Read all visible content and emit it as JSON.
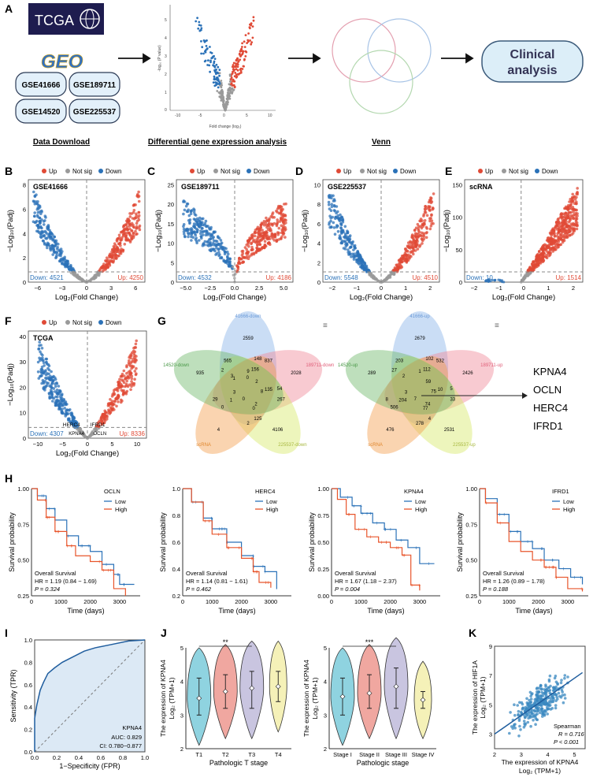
{
  "panel_letters": {
    "A": "A",
    "B": "B",
    "C": "C",
    "D": "D",
    "E": "E",
    "F": "F",
    "G": "G",
    "H": "H",
    "I": "I",
    "J": "J",
    "K": "K"
  },
  "colors": {
    "up": "#e04a36",
    "down": "#2b72b8",
    "ns": "#9a9a9a",
    "low": "#2b72b8",
    "high": "#e8552b"
  },
  "workflow": {
    "tcga_logo": "TCGA",
    "geo_logo": "GEO",
    "datasets": [
      "GSE41666",
      "GSE189711",
      "GSE14520",
      "GSE225537"
    ],
    "clinical": "Clinical analysis",
    "labels": [
      "Data Download",
      "Differential gene expression analysis",
      "Venn"
    ],
    "mini_volcano": {
      "xlabel": "Fold change (log₂)",
      "ylabel": "-log₁₀ (P value)",
      "xticks": [
        "-10",
        "-5",
        "0",
        "5",
        "10"
      ],
      "yticks": [
        "0",
        "1",
        "2",
        "3",
        "4",
        "5"
      ]
    }
  },
  "legend": {
    "up": "Up",
    "ns": "Not sig",
    "down": "Down"
  },
  "common_axes": {
    "ylabel": "−Log₁₀(Padj)",
    "xlabel": "Log₂(Fold Change)"
  },
  "chart_data": [
    {
      "type": "scatter",
      "panel": "B",
      "title": "GSE41666",
      "down_count": "Down: 4521",
      "up_count": "Up: 4250",
      "xlim": [
        -6,
        6
      ],
      "ylim": [
        0,
        8
      ],
      "xticks": [
        "−6",
        "−3",
        "0",
        "3",
        "6"
      ],
      "yticks": [
        "0",
        "2",
        "4",
        "6",
        "8"
      ],
      "shape": {
        "xmax": 5.5,
        "ymax": 7.4,
        "spread": 1.4
      }
    },
    {
      "type": "scatter",
      "panel": "C",
      "title": "GSE189711",
      "down_count": "Down: 4532",
      "up_count": "Up: 4186",
      "xlim": [
        -5,
        5
      ],
      "ylim": [
        0,
        25
      ],
      "xticks": [
        "−5.0",
        "−2.5",
        "0.0",
        "2.5",
        "5.0"
      ],
      "yticks": [
        "0",
        "5",
        "10",
        "15",
        "20",
        "25"
      ],
      "shape": {
        "xmax": 4.4,
        "ymax": 20,
        "spread": 0.5
      }
    },
    {
      "type": "scatter",
      "panel": "D",
      "title": "GSE225537",
      "down_count": "Down: 5548",
      "up_count": "Up: 4510",
      "xlim": [
        -3,
        3
      ],
      "ylim": [
        0,
        10
      ],
      "xticks": [
        "−2",
        "−1",
        "0",
        "1",
        "2"
      ],
      "yticks": [
        "0",
        "2",
        "4",
        "6",
        "8",
        "10"
      ],
      "shape": {
        "xmax": 2.7,
        "ymax": 9.6,
        "spread": 1.4
      }
    },
    {
      "type": "scatter",
      "panel": "E",
      "title": "scRNA",
      "down_count": "Down: 10",
      "up_count": "Up: 1514",
      "xlim": [
        -2.2,
        2.4
      ],
      "ylim": [
        0,
        170
      ],
      "xticks": [
        "−2",
        "−1",
        "0",
        "1",
        "2"
      ],
      "yticks": [
        "0",
        "50",
        "100",
        "150"
      ],
      "shape": {
        "xmax": 2.2,
        "ymax": 160,
        "spread": 1.0
      }
    },
    {
      "type": "scatter",
      "panel": "F",
      "title": "TCGA",
      "down_count": "Down: 4307",
      "up_count": "Up: 8336",
      "xlim": [
        -12,
        12
      ],
      "ylim": [
        0,
        45
      ],
      "xticks": [
        "−10",
        "−5",
        "0",
        "5",
        "10"
      ],
      "yticks": [
        "0",
        "10",
        "20",
        "30",
        "40"
      ],
      "shape": {
        "xmax": 10,
        "ymax": 42,
        "spread": 1.2
      },
      "gene_labels": [
        "HERC4",
        "IFRD1",
        "KPNA4",
        "OCLN"
      ]
    },
    {
      "type": "venn",
      "panel": "G",
      "down_sets": [
        "41666-down",
        "189711-down",
        "225537-down",
        "scRNA",
        "14520-down"
      ],
      "down_counts": [
        "2559",
        "2028",
        "4106",
        "4",
        "935",
        "837",
        "267",
        "2",
        "29",
        "565",
        "148",
        "54",
        "125",
        "0",
        "2",
        "156",
        "135",
        "0",
        "1",
        "3",
        "9",
        "2",
        "8",
        "2",
        "0",
        "3",
        "1",
        "0"
      ],
      "up_sets": [
        "41666-up",
        "189711-up",
        "225537-up",
        "scRNA",
        "14520-up"
      ],
      "up_counts": [
        "2679",
        "2426",
        "2531",
        "476",
        "289",
        "532",
        "33",
        "278",
        "8",
        "203",
        "102",
        "5",
        "4",
        "506",
        "27",
        "112",
        "10",
        "77",
        "204",
        "2",
        "1",
        "59",
        "75",
        "74",
        "7",
        "3"
      ]
    },
    {
      "type": "table",
      "panel": "G-genes",
      "genes": [
        "KPNA4",
        "OCLN",
        "HERC4",
        "IFRD1"
      ]
    },
    {
      "type": "line",
      "panel": "H",
      "xlabel": "Time (days)",
      "ylabel": "Survival probability",
      "plots": [
        {
          "gene": "OCLN",
          "hr": "HR = 1.19 (0.84 − 1.69)",
          "p": "P = 0.324",
          "ylim": [
            0.25,
            1.0
          ],
          "yticks": [
            "0.25",
            "0.50",
            "0.75",
            "1.00"
          ],
          "xticks": [
            "0",
            "1000",
            "2000",
            "3000"
          ],
          "low": [
            [
              0,
              1
            ],
            [
              200,
              0.95
            ],
            [
              500,
              0.86
            ],
            [
              800,
              0.78
            ],
            [
              1200,
              0.67
            ],
            [
              1600,
              0.6
            ],
            [
              2000,
              0.56
            ],
            [
              2400,
              0.47
            ],
            [
              2800,
              0.4
            ],
            [
              3000,
              0.33
            ],
            [
              3500,
              0.33
            ]
          ],
          "high": [
            [
              0,
              1
            ],
            [
              200,
              0.92
            ],
            [
              500,
              0.8
            ],
            [
              800,
              0.7
            ],
            [
              1200,
              0.6
            ],
            [
              1500,
              0.53
            ],
            [
              2000,
              0.49
            ],
            [
              2400,
              0.43
            ],
            [
              2800,
              0.3
            ],
            [
              3200,
              0.25
            ]
          ]
        },
        {
          "gene": "HERC4",
          "hr": "HR = 1.14 (0.81 − 1.61)",
          "p": "P = 0.462",
          "ylim": [
            0.2,
            1.0
          ],
          "yticks": [
            "0.2",
            "0.4",
            "0.6",
            "0.8",
            "1.0"
          ],
          "xticks": [
            "0",
            "1000",
            "2000",
            "3000"
          ],
          "low": [
            [
              0,
              1
            ],
            [
              300,
              0.9
            ],
            [
              700,
              0.78
            ],
            [
              1000,
              0.7
            ],
            [
              1500,
              0.6
            ],
            [
              2000,
              0.5
            ],
            [
              2400,
              0.42
            ],
            [
              2800,
              0.38
            ],
            [
              3200,
              0.25
            ]
          ],
          "high": [
            [
              0,
              1
            ],
            [
              300,
              0.9
            ],
            [
              700,
              0.76
            ],
            [
              1000,
              0.66
            ],
            [
              1500,
              0.56
            ],
            [
              2000,
              0.48
            ],
            [
              2400,
              0.38
            ],
            [
              2600,
              0.3
            ],
            [
              3000,
              0.26
            ]
          ]
        },
        {
          "gene": "KPNA4",
          "hr": "HR = 1.67 (1.18 − 2.37)",
          "p": "P = 0.004",
          "ylim": [
            0.0,
            1.0
          ],
          "yticks": [
            "0.00",
            "0.25",
            "0.50",
            "0.75",
            "1.00"
          ],
          "xticks": [
            "0",
            "1000",
            "2000",
            "3000"
          ],
          "low": [
            [
              0,
              1
            ],
            [
              300,
              0.92
            ],
            [
              700,
              0.84
            ],
            [
              1000,
              0.77
            ],
            [
              1400,
              0.68
            ],
            [
              1800,
              0.62
            ],
            [
              2200,
              0.52
            ],
            [
              2600,
              0.45
            ],
            [
              3000,
              0.3
            ],
            [
              3500,
              0.3
            ]
          ],
          "high": [
            [
              0,
              1
            ],
            [
              200,
              0.9
            ],
            [
              500,
              0.76
            ],
            [
              800,
              0.62
            ],
            [
              1200,
              0.55
            ],
            [
              1600,
              0.5
            ],
            [
              2000,
              0.45
            ],
            [
              2400,
              0.38
            ],
            [
              2700,
              0.1
            ],
            [
              3000,
              0.05
            ]
          ]
        },
        {
          "gene": "IFRD1",
          "hr": "HR = 1.26 (0.89 − 1.78)",
          "p": "P = 0.188",
          "ylim": [
            0.25,
            1.0
          ],
          "yticks": [
            "0.25",
            "0.50",
            "0.75",
            "1.00"
          ],
          "xticks": [
            "0",
            "1000",
            "2000",
            "3000"
          ],
          "low": [
            [
              0,
              1
            ],
            [
              200,
              0.93
            ],
            [
              600,
              0.82
            ],
            [
              1000,
              0.7
            ],
            [
              1400,
              0.63
            ],
            [
              1800,
              0.58
            ],
            [
              2200,
              0.5
            ],
            [
              2700,
              0.44
            ],
            [
              3100,
              0.38
            ],
            [
              3500,
              0.33
            ]
          ],
          "high": [
            [
              0,
              1
            ],
            [
              200,
              0.9
            ],
            [
              600,
              0.76
            ],
            [
              1000,
              0.63
            ],
            [
              1400,
              0.56
            ],
            [
              1800,
              0.5
            ],
            [
              2200,
              0.45
            ],
            [
              2600,
              0.38
            ],
            [
              3000,
              0.3
            ],
            [
              3500,
              0.28
            ]
          ]
        }
      ],
      "legend_low": "Low",
      "legend_high": "High",
      "os_label": "Overall Survival"
    },
    {
      "type": "line",
      "panel": "I",
      "title": "KPNA4",
      "auc": "AUC: 0.829",
      "ci": "CI: 0.780−0.877",
      "xlabel": "1−Specificity (FPR)",
      "ylabel": "Sensitivity (TPR)",
      "xticks": [
        "0.0",
        "0.2",
        "0.4",
        "0.6",
        "0.8",
        "1.0"
      ],
      "yticks": [
        "0.0",
        "0.2",
        "0.4",
        "0.6",
        "0.8",
        "1.0"
      ],
      "roc": [
        [
          0,
          0
        ],
        [
          0,
          0.3
        ],
        [
          0.02,
          0.42
        ],
        [
          0.05,
          0.55
        ],
        [
          0.08,
          0.62
        ],
        [
          0.12,
          0.7
        ],
        [
          0.18,
          0.75
        ],
        [
          0.25,
          0.8
        ],
        [
          0.35,
          0.85
        ],
        [
          0.45,
          0.9
        ],
        [
          0.55,
          0.93
        ],
        [
          0.7,
          0.96
        ],
        [
          0.85,
          0.99
        ],
        [
          1,
          1
        ]
      ]
    },
    {
      "type": "violin",
      "panel": "J1",
      "xlabel": "Pathologic T stage",
      "ylabel": "The expression of KPNA4",
      "ylabel2": "Log₂ (TPM+1)",
      "categories": [
        "T1",
        "T2",
        "T3",
        "T4"
      ],
      "medians": [
        3.5,
        3.7,
        3.8,
        3.85
      ],
      "q1": [
        3.0,
        3.2,
        3.2,
        3.4
      ],
      "q3": [
        4.1,
        4.2,
        4.3,
        4.3
      ],
      "sig": "**",
      "colors": [
        "#8fd3e0",
        "#f0a7a0",
        "#c9c5e0",
        "#f5f1b8"
      ],
      "ylim": [
        2,
        5
      ],
      "yticks": [
        "2",
        "3",
        "4",
        "5"
      ]
    },
    {
      "type": "violin",
      "panel": "J2",
      "xlabel": "Pathologic stage",
      "ylabel": "The expression of KPNA4",
      "ylabel2": "Log₂ (TPM+1)",
      "categories": [
        "Stage I",
        "Stage II",
        "Stage III",
        "Stage IV"
      ],
      "medians": [
        3.55,
        3.65,
        3.85,
        3.45
      ],
      "q1": [
        3.0,
        3.2,
        3.2,
        3.2
      ],
      "q3": [
        4.1,
        4.2,
        4.4,
        3.7
      ],
      "sig": "***",
      "colors": [
        "#8fd3e0",
        "#f0a7a0",
        "#c9c5e0",
        "#f5f1b8"
      ],
      "ylim": [
        2,
        5
      ],
      "yticks": [
        "2",
        "3",
        "4",
        "5"
      ]
    },
    {
      "type": "scatter",
      "panel": "K",
      "xlabel": "The expression of KPNA4",
      "xlabel2": "Log₂ (TPM+1)",
      "ylabel": "The expression of HIF1A",
      "ylabel2": "Log₂ (TPM+1)",
      "stat1": "Spearman",
      "stat2": "R = 0.716",
      "stat3": "P < 0.001",
      "xlim": [
        2,
        5.4
      ],
      "ylim": [
        2,
        9
      ],
      "xticks": [
        "2",
        "3",
        "4",
        "5"
      ],
      "yticks": [
        "3",
        "5",
        "7",
        "9"
      ],
      "fit": [
        [
          2,
          3.0
        ],
        [
          5.3,
          7.2
        ]
      ]
    }
  ]
}
